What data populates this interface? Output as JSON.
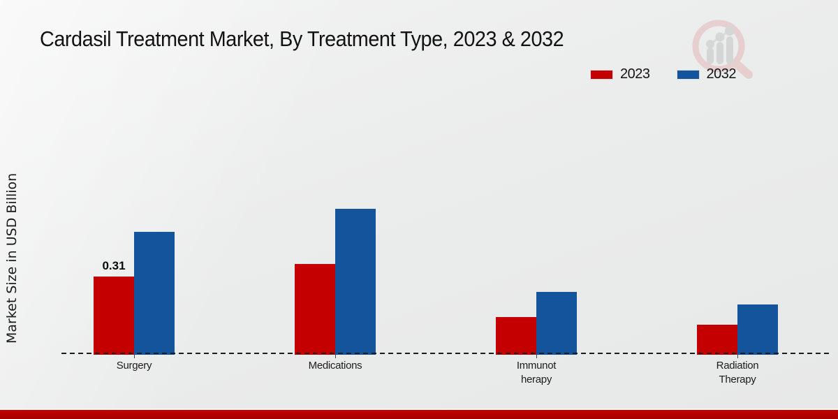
{
  "page": {
    "title": "Cardasil Treatment Market, By Treatment Type, 2023 & 2032",
    "y_axis_label": "Market Size in USD Billion"
  },
  "legend": {
    "items": [
      {
        "label": "2023",
        "color": "#c40000"
      },
      {
        "label": "2032",
        "color": "#13549d"
      }
    ]
  },
  "axis": {
    "category_labels": [
      "Surgery",
      "Medications",
      "Immunot\nherapy",
      "Radiation\nTherapy"
    ]
  },
  "watermark": {
    "icon": "market-research-magnifier-logo"
  },
  "footer": {
    "stripe_color": "#b50000"
  },
  "chart_data": {
    "type": "bar",
    "title": "Cardasil Treatment Market, By Treatment Type, 2023 & 2032",
    "xlabel": "",
    "ylabel": "Market Size in USD Billion",
    "categories": [
      "Surgery",
      "Medications",
      "Immunotherapy",
      "Radiation Therapy"
    ],
    "series": [
      {
        "name": "2023",
        "color": "#c40000",
        "values": [
          0.31,
          0.36,
          0.15,
          0.12
        ]
      },
      {
        "name": "2032",
        "color": "#13549d",
        "values": [
          0.49,
          0.58,
          0.25,
          0.2
        ]
      }
    ],
    "value_labels": [
      {
        "category": "Surgery",
        "series": "2023",
        "text": "0.31"
      }
    ],
    "ylim": [
      0,
      0.65
    ],
    "grid": false,
    "axis_style": "dashed-baseline-only",
    "legend_position": "top-right"
  }
}
